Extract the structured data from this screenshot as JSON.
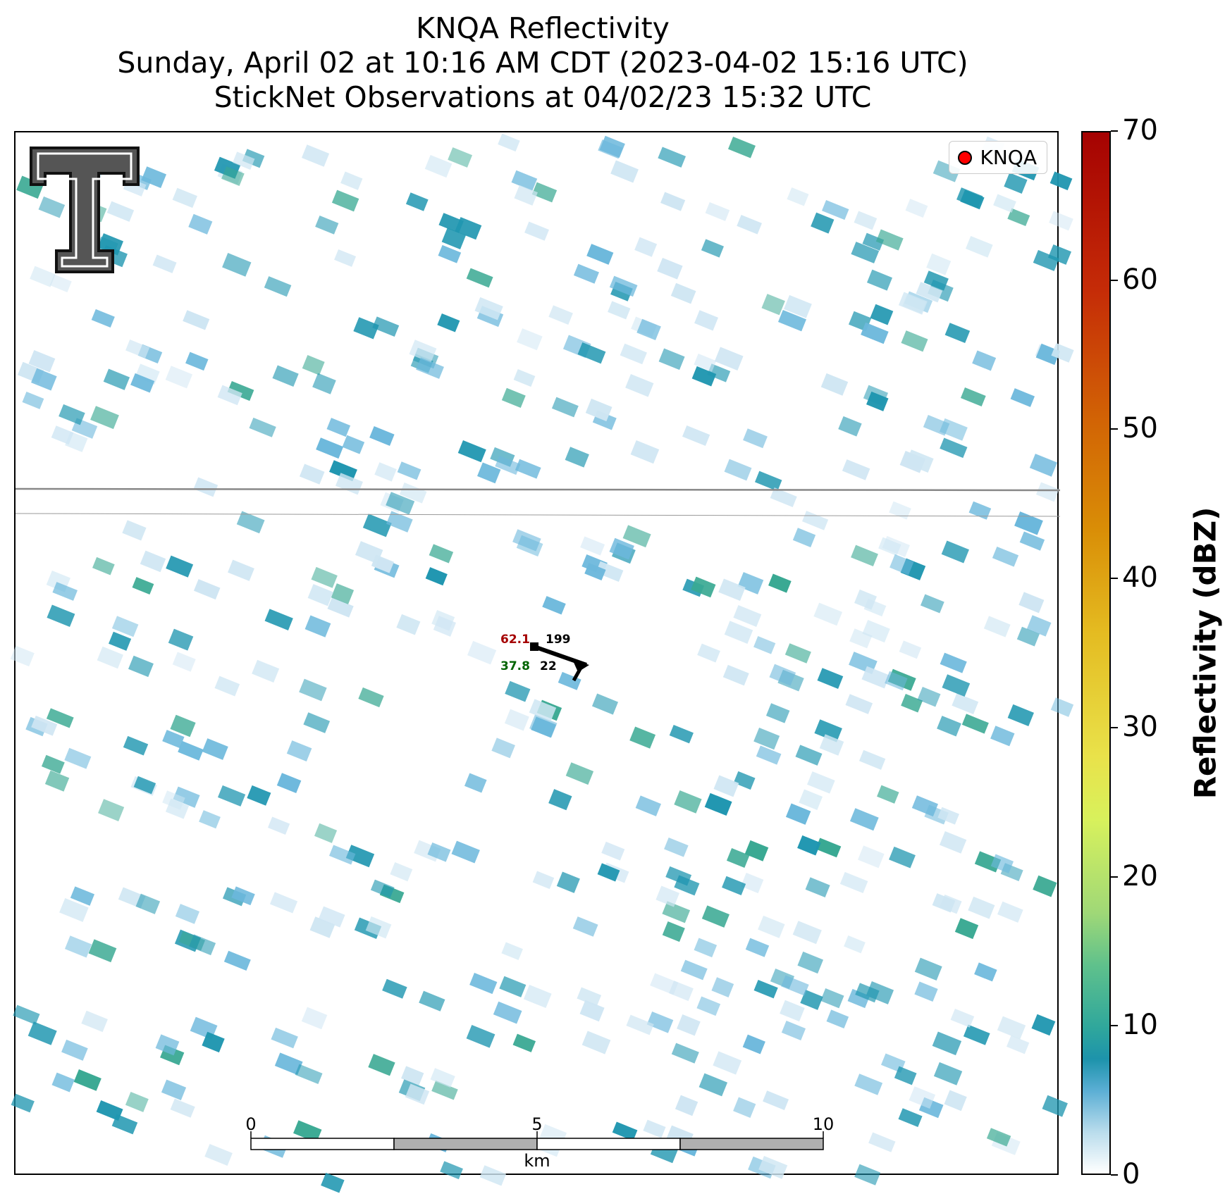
{
  "title": {
    "line1": "KNQA Reflectivity",
    "line2": "Sunday, April 02 at 10:16 AM CDT (2023-04-02 15:16 UTC)",
    "line3": "StickNet Observations at 04/02/23 15:32 UTC"
  },
  "legend": {
    "label": "KNQA",
    "marker_color": "#ff0000"
  },
  "station": {
    "temperature": "62.1",
    "dewpoint": "37.8",
    "pressure": "199",
    "other": "22"
  },
  "colorbar": {
    "label": "Reflectivity (dBZ)",
    "ticks": [
      "0",
      "10",
      "20",
      "30",
      "40",
      "50",
      "60",
      "70"
    ],
    "range": [
      0,
      70
    ]
  },
  "scalebar": {
    "ticks": [
      "0",
      "5",
      "10"
    ],
    "unit": "km"
  },
  "colors": {
    "light": "#cfe6f3",
    "blue": "#6cb8dc",
    "teal": "#1f96b0",
    "green": "#3aa993",
    "temp": "#a50000",
    "dew": "#006400"
  }
}
